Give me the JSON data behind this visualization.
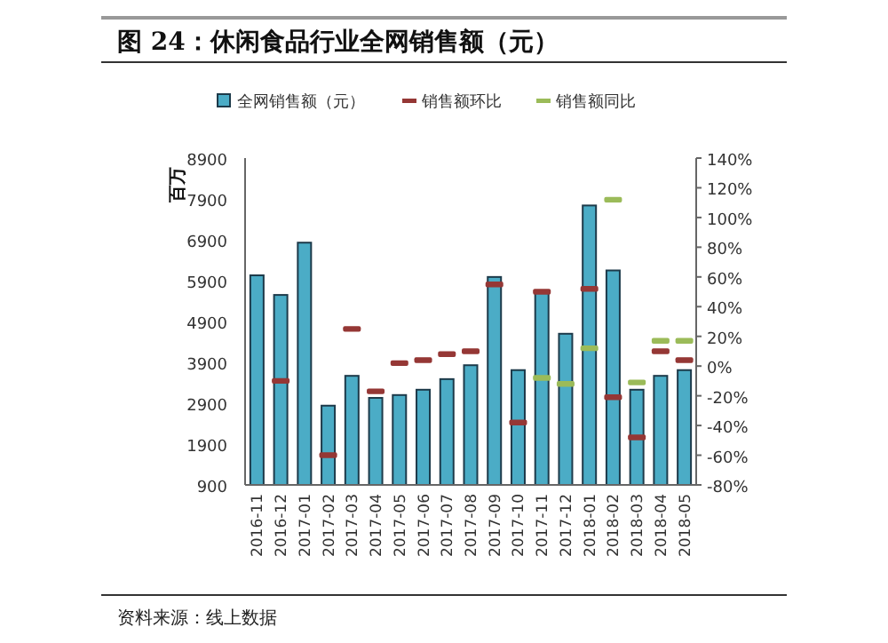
{
  "chart_data": {
    "type": "bar",
    "title": "图 24：休闲食品行业全网销售额（元）",
    "ylabel": "百万",
    "categories": [
      "2016-11",
      "2016-12",
      "2017-01",
      "2017-02",
      "2017-03",
      "2017-04",
      "2017-05",
      "2017-06",
      "2017-07",
      "2017-08",
      "2017-09",
      "2017-10",
      "2017-11",
      "2017-12",
      "2018-01",
      "2018-02",
      "2018-03",
      "2018-04",
      "2018-05"
    ],
    "series": [
      {
        "name": "全网销售额（元）",
        "type": "bar",
        "color": "#4bacc6",
        "values": [
          6030,
          5550,
          6830,
          2840,
          3570,
          3030,
          3100,
          3230,
          3490,
          3830,
          5990,
          3710,
          5640,
          4600,
          7740,
          6150,
          3230,
          3570,
          3710
        ]
      },
      {
        "name": "销售额环比",
        "type": "scatter",
        "axis": "y2",
        "color": "#953735",
        "values": [
          null,
          -10,
          null,
          -60,
          25,
          -17,
          2,
          4,
          8,
          10,
          55,
          -38,
          50,
          null,
          52,
          -21,
          -48,
          10,
          4
        ]
      },
      {
        "name": "销售额同比",
        "type": "scatter",
        "axis": "y2",
        "color": "#9bbb59",
        "values": [
          null,
          null,
          null,
          null,
          null,
          null,
          null,
          null,
          null,
          null,
          null,
          null,
          -8,
          -12,
          12,
          112,
          -11,
          17,
          17
        ]
      }
    ],
    "ylim": [
      900,
      8900
    ],
    "yticks": [
      900,
      1900,
      2900,
      3900,
      4900,
      5900,
      6900,
      7900,
      8900
    ],
    "y2lim": [
      -80,
      140
    ],
    "y2ticks": [
      {
        "value": -80,
        "label": "-80%"
      },
      {
        "value": -60,
        "label": "-60%"
      },
      {
        "value": -40,
        "label": "-40%"
      },
      {
        "value": -20,
        "label": "-20%"
      },
      {
        "value": 0,
        "label": "0%"
      },
      {
        "value": 20,
        "label": "20%"
      },
      {
        "value": 40,
        "label": "40%"
      },
      {
        "value": 60,
        "label": "60%"
      },
      {
        "value": 80,
        "label": "80%"
      },
      {
        "value": 100,
        "label": "100%"
      },
      {
        "value": 120,
        "label": "120%"
      },
      {
        "value": 140,
        "label": "140%"
      }
    ],
    "legend": "top",
    "grid": false,
    "annotations": [
      "资料来源：线上数据"
    ]
  }
}
